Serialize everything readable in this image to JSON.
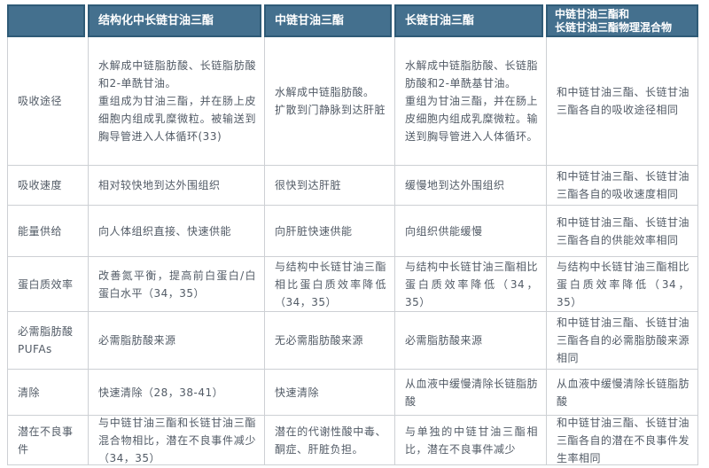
{
  "colors": {
    "header_bg": "#44708e",
    "header_border": "#2f5b77",
    "header_text": "#ffffff",
    "body_text": "#525b66",
    "grid_line": "#cdd0d4"
  },
  "header": {
    "columns": [
      "",
      "结构化中长链甘油三酯",
      "中链甘油三酯",
      "长链甘油三酯",
      "中链甘油三酯和\n长链甘油三酯物理混合物"
    ]
  },
  "rows": [
    {
      "label": "吸收途径",
      "cells": [
        "水解成中链脂肪酸、长链脂肪酸和2-单酰甘油。\n重组成为甘油三酯，并在肠上皮细胞内组成乳糜微粒。被输送到胸导管进入人体循环(33)",
        "水解成中链脂肪酸。\n扩散到门静脉到达肝脏",
        "水解成中链脂肪酸、长链脂肪酸和2-单酰基甘油。\n重组为甘油三酯，并在肠上皮细胞内组成乳糜微粒。输送到胸导管进入人体循环。",
        "和中链甘油三酯、长链甘油三酯各自的吸收途径相同"
      ]
    },
    {
      "label": "吸收速度",
      "cells": [
        "相对较快地到达外围组织",
        "很快到达肝脏",
        "缓慢地到达外围组织",
        "和中链甘油三酯、长链甘油三酯各自的吸收速度相同"
      ]
    },
    {
      "label": "能量供给",
      "cells": [
        "向人体组织直接、快速供能",
        "向肝脏快速供能",
        "向组织供能缓慢",
        "和中链甘油三酯、长链甘油三酯各自的供能效率相同"
      ]
    },
    {
      "label": "蛋白质效率",
      "cells": [
        "改善氮平衡，提高前白蛋白/白蛋白水平（34，35）",
        "与结构中长链甘油三酯相比蛋白质效率降低（34，35）",
        "与结构中长链甘油三酯相比蛋白质效率降低（34，35）",
        "与结构中长链甘油三酯相比蛋白质效率降低（34，35）"
      ]
    },
    {
      "label": "必需脂肪酸\nPUFAs",
      "cells": [
        "必需脂肪酸来源",
        "无必需脂肪酸来源",
        "必需脂肪酸来源",
        "和中链甘油三酯、长链甘油三酯各自的必需脂肪酸来源相同"
      ]
    },
    {
      "label": "清除",
      "cells": [
        "快速清除（28，38-41）",
        "快速清除",
        "从血液中缓慢清除长链脂肪酸",
        "从血液中缓慢清除长链脂肪酸"
      ]
    },
    {
      "label": "潜在不良事件",
      "cells": [
        "与中链甘油三酯和长链甘油三酯混合物相比，潜在不良事件减少（34，35）",
        "潜在的代谢性酸中毒、酮症、肝脏负担。",
        "与单独的中链甘油三酯相比，潜在不良事件减少",
        "和中链甘油三酯、长链甘油三酯各自的潜在不良事件发生率相同"
      ]
    }
  ]
}
